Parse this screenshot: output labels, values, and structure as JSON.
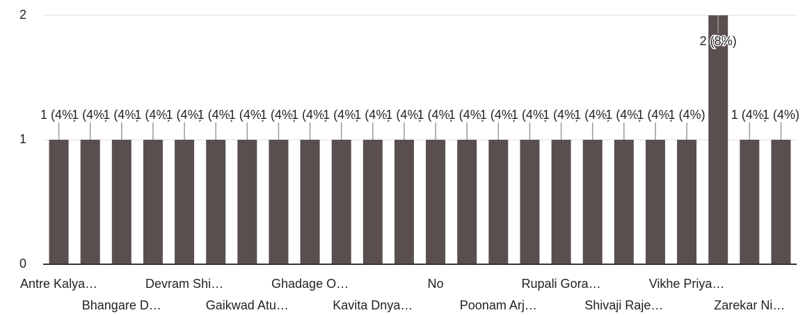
{
  "chart_data": {
    "type": "bar",
    "categories": [
      "Antre Kalya…",
      null,
      "Bhangare D…",
      null,
      "Devram Shi…",
      null,
      "Gaikwad Atu…",
      null,
      "Ghadage O…",
      null,
      "Kavita Dnya…",
      null,
      "No",
      null,
      "Poonam Arj…",
      null,
      "Rupali Gora…",
      null,
      "Shivaji Raje…",
      null,
      "Vikhe Priya…",
      null,
      "Zarekar Ni…",
      null
    ],
    "values": [
      1,
      1,
      1,
      1,
      1,
      1,
      1,
      1,
      1,
      1,
      1,
      1,
      1,
      1,
      1,
      1,
      1,
      1,
      1,
      1,
      1,
      2,
      1,
      1
    ],
    "value_labels": [
      "1 (4%)",
      "1 (4%)",
      "1 (4%)",
      "1 (4%)",
      "1 (4%)",
      "1 (4%)",
      "1 (4%)",
      "1 (4%)",
      "1 (4%)",
      "1 (4%)",
      "1 (4%)",
      "1 (4%)",
      "1 (4%)",
      "1 (4%)",
      "1 (4%)",
      "1 (4%)",
      "1 (4%)",
      "1 (4%)",
      "1 (4%)",
      "1 (4%)",
      "1 (4%)",
      "2 (8%)",
      "1 (4%)",
      "1 (4%)"
    ],
    "color": "#5a4f4f",
    "ylim": [
      0,
      2
    ],
    "yticks": [
      0,
      1,
      2
    ],
    "grid": true
  }
}
